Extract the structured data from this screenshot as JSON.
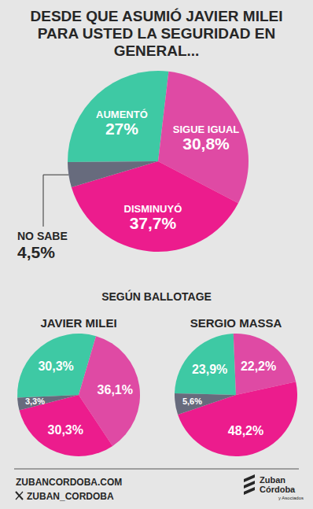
{
  "chart_data": [
    {
      "type": "pie",
      "title": "DESDE QUE ASUMIÓ JAVIER MILEI PARA USTED LA SEGURIDAD EN GENERAL...",
      "categories": [
        "AUMENTÓ",
        "SIGUE IGUAL",
        "DISMINUYÓ",
        "NO SABE"
      ],
      "values": [
        27,
        30.8,
        37.7,
        4.5
      ],
      "value_labels": [
        "27%",
        "30,8%",
        "37,7%",
        "4,5%"
      ],
      "colors": [
        "#3ec9a4",
        "#df4aa4",
        "#ec1c8d",
        "#676b7d"
      ],
      "data_labels": true
    },
    {
      "type": "pie",
      "title": "JAVIER MILEI",
      "values": [
        30.3,
        36.1,
        30.3,
        3.3
      ],
      "value_labels": [
        "30,3%",
        "36,1%",
        "30,3%",
        "3,3%"
      ],
      "colors": [
        "#3ec9a4",
        "#df4aa4",
        "#ec1c8d",
        "#676b7d"
      ],
      "data_labels": true
    },
    {
      "type": "pie",
      "title": "SERGIO MASSA",
      "values": [
        23.9,
        22.2,
        48.2,
        5.6
      ],
      "value_labels": [
        "23,9%",
        "22,2%",
        "48,2%",
        "5,6%"
      ],
      "colors": [
        "#3ec9a4",
        "#df4aa4",
        "#ec1c8d",
        "#676b7d"
      ],
      "data_labels": true
    }
  ],
  "section_title": "SEGÚN BALLOTAGE",
  "footer": {
    "links": [
      "ZUBANCORDOBA.COM",
      "ZUBAN_CORDOBA"
    ],
    "logo": [
      "Zuban",
      "Córdoba",
      "y Asociados"
    ]
  }
}
